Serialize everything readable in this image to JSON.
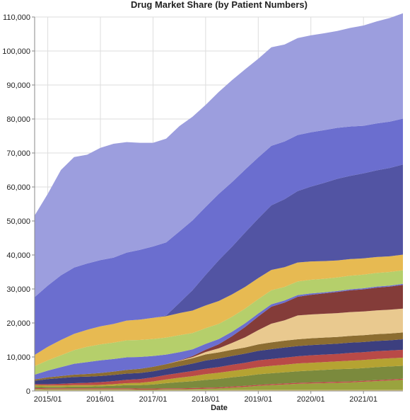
{
  "chart_data": {
    "type": "area",
    "stacked": true,
    "style": "streamgraph",
    "title": "Drug Market Share (by Patient Numbers)",
    "xlabel": "Date",
    "ylabel": "",
    "x_range": [
      "2014-10",
      "2021-10"
    ],
    "ylim": [
      0,
      110000
    ],
    "y_ticks": [
      "0",
      "10,000",
      "20,000",
      "30,000",
      "40,000",
      "50,000",
      "60,000",
      "70,000",
      "80,000",
      "90,000",
      "100,000",
      "110,000"
    ],
    "x_ticks": [
      "2015/01",
      "2016/01",
      "2017/01",
      "2018/01",
      "2019/01",
      "2020/01",
      "2021/01"
    ],
    "grid": true,
    "legend": "none",
    "x": [
      "2014-10",
      "2015-01",
      "2015-04",
      "2015-07",
      "2015-10",
      "2016-01",
      "2016-04",
      "2016-07",
      "2016-10",
      "2017-01",
      "2017-04",
      "2017-07",
      "2017-10",
      "2018-01",
      "2018-04",
      "2018-07",
      "2018-10",
      "2019-01",
      "2019-04",
      "2019-07",
      "2019-10",
      "2020-01",
      "2020-04",
      "2020-07",
      "2020-10",
      "2021-01",
      "2021-04",
      "2021-07",
      "2021-10"
    ],
    "series": [
      {
        "color": "#e8d18d",
        "values": [
          300,
          250,
          250,
          250,
          250,
          250,
          250,
          250,
          200,
          200,
          250,
          250,
          250,
          250,
          250,
          300,
          300,
          300,
          300,
          300,
          300,
          300,
          300,
          300,
          300,
          300,
          300,
          300,
          300
        ]
      },
      {
        "color": "#9aa33e",
        "values": [
          300,
          250,
          250,
          250,
          250,
          250,
          250,
          250,
          200,
          200,
          250,
          250,
          300,
          400,
          500,
          700,
          900,
          1200,
          1400,
          1600,
          1800,
          1900,
          2000,
          2100,
          2200,
          2400,
          2600,
          2800,
          3000
        ]
      },
      {
        "color": "#c1494a",
        "values": [
          300,
          300,
          300,
          300,
          300,
          300,
          300,
          300,
          300,
          300,
          300,
          300,
          300,
          300,
          300,
          300,
          300,
          300,
          300,
          300,
          300,
          300,
          300,
          300,
          300,
          300,
          300,
          300,
          300
        ]
      },
      {
        "color": "#7b8a3d",
        "values": [
          400,
          400,
          400,
          500,
          500,
          600,
          700,
          900,
          1000,
          1200,
          1500,
          1800,
          2000,
          2300,
          2500,
          2700,
          2900,
          3100,
          3200,
          3300,
          3400,
          3500,
          3600,
          3700,
          3700,
          3700,
          3800,
          3800,
          3800
        ]
      },
      {
        "color": "#b5a332",
        "values": [
          400,
          400,
          400,
          400,
          400,
          400,
          500,
          600,
          700,
          900,
          1100,
          1300,
          1500,
          1700,
          1800,
          1900,
          2000,
          2100,
          2200,
          2200,
          2300,
          2300,
          2300,
          2300,
          2400,
          2400,
          2400,
          2400,
          2400
        ]
      },
      {
        "color": "#b94a47",
        "values": [
          300,
          400,
          500,
          600,
          700,
          800,
          900,
          1000,
          1100,
          1200,
          1300,
          1400,
          1500,
          1600,
          1700,
          1800,
          1900,
          2000,
          2000,
          2100,
          2100,
          2200,
          2200,
          2200,
          2300,
          2300,
          2300,
          2300,
          2300
        ]
      },
      {
        "color": "#3c3f7f",
        "values": [
          1000,
          1500,
          1700,
          1800,
          1800,
          1800,
          1800,
          1800,
          1800,
          1800,
          1800,
          2000,
          2200,
          2400,
          2500,
          2600,
          2700,
          2800,
          2900,
          3000,
          3000,
          3000,
          3000,
          3000,
          3000,
          3000,
          3000,
          3000,
          3100
        ]
      },
      {
        "color": "#8c6d31",
        "values": [
          400,
          500,
          600,
          700,
          800,
          900,
          1000,
          1100,
          1200,
          1300,
          1400,
          1500,
          1600,
          1800,
          1800,
          1800,
          1800,
          1900,
          2000,
          2000,
          2000,
          2000,
          2000,
          2000,
          2000,
          2000,
          2000,
          2000,
          2000
        ]
      },
      {
        "color": "#e9c98f",
        "values": [
          0,
          0,
          0,
          0,
          0,
          0,
          0,
          0,
          0,
          0,
          0,
          100,
          300,
          700,
          1200,
          2000,
          3000,
          4200,
          5500,
          6000,
          7000,
          7000,
          7000,
          7000,
          7000,
          7000,
          7000,
          7000,
          7000
        ]
      },
      {
        "color": "#843c39",
        "values": [
          0,
          0,
          0,
          0,
          0,
          0,
          0,
          0,
          0,
          0,
          0,
          100,
          300,
          700,
          1200,
          2000,
          3000,
          4000,
          5000,
          5200,
          5500,
          5800,
          6000,
          6200,
          6400,
          6500,
          6700,
          6800,
          7000
        ]
      },
      {
        "color": "#6b6ecf",
        "values": [
          1400,
          2000,
          2600,
          3200,
          3500,
          3700,
          3700,
          3700,
          3500,
          3200,
          2800,
          2400,
          2000,
          1700,
          1500,
          1300,
          1100,
          900,
          700,
          600,
          500,
          400,
          300,
          300,
          300,
          300,
          300,
          300,
          300
        ]
      },
      {
        "color": "#b5cf6b",
        "values": [
          2500,
          3000,
          3500,
          4000,
          4500,
          4700,
          4800,
          5000,
          5000,
          5000,
          5000,
          5000,
          4800,
          4600,
          4500,
          4400,
          4300,
          4200,
          4100,
          4000,
          4000,
          4000,
          4000,
          4000,
          4000,
          4000,
          4000,
          4000,
          4000
        ]
      },
      {
        "color": "#e7ba52",
        "values": [
          3300,
          4000,
          4500,
          4800,
          5000,
          5300,
          5500,
          5800,
          6000,
          6200,
          6300,
          6500,
          6600,
          6700,
          6700,
          6600,
          6400,
          6200,
          6000,
          5800,
          5600,
          5400,
          5200,
          5000,
          4900,
          4800,
          4700,
          4600,
          4600
        ]
      },
      {
        "color": "#5254a3",
        "values": [
          0,
          0,
          0,
          0,
          0,
          0,
          0,
          0,
          0,
          0,
          200,
          3000,
          6000,
          9000,
          12000,
          14000,
          16000,
          17500,
          19000,
          20000,
          21000,
          22000,
          23000,
          24000,
          24500,
          25000,
          25500,
          26000,
          26500
        ]
      },
      {
        "color": "#6b6ecf",
        "values": [
          17000,
          18000,
          19000,
          19500,
          19500,
          19500,
          19500,
          20000,
          20500,
          21000,
          21500,
          21000,
          20500,
          20000,
          19500,
          19000,
          18500,
          18000,
          17500,
          17000,
          16500,
          16000,
          15500,
          15000,
          14500,
          14000,
          13800,
          13600,
          13500
        ]
      },
      {
        "color": "#9c9ede",
        "values": [
          24000,
          27000,
          31000,
          32500,
          32000,
          33000,
          33500,
          32500,
          31500,
          30500,
          30500,
          31000,
          30500,
          30000,
          30000,
          30000,
          29500,
          29000,
          29000,
          28500,
          28500,
          28500,
          28500,
          28500,
          29000,
          29500,
          30000,
          30500,
          31000
        ]
      }
    ]
  }
}
